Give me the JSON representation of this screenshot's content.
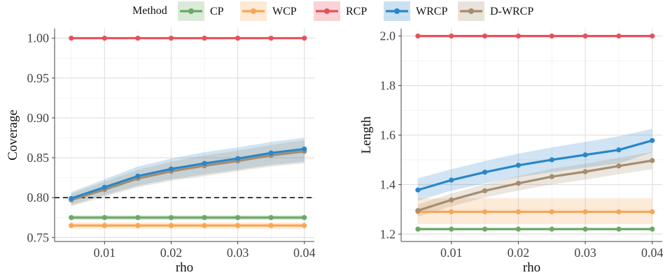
{
  "legend": {
    "title": "Method",
    "placement": "top",
    "items": [
      {
        "label": "CP",
        "color": "#6aaa64"
      },
      {
        "label": "WCP",
        "color": "#f7a654"
      },
      {
        "label": "RCP",
        "color": "#e8505b"
      },
      {
        "label": "WRCP",
        "color": "#2a86c8"
      },
      {
        "label": "D-WRCP",
        "color": "#a68d6e"
      }
    ]
  },
  "chart_data": [
    {
      "type": "line",
      "xlabel": "rho",
      "ylabel": "Coverage",
      "xlim": [
        0.0025,
        0.0415
      ],
      "ylim": [
        0.745,
        1.012
      ],
      "xticks": [
        0.01,
        0.02,
        0.03,
        0.04
      ],
      "xtick_labels": [
        "0.01",
        "0.02",
        "0.03",
        "0.04"
      ],
      "yticks": [
        0.75,
        0.8,
        0.85,
        0.9,
        0.95,
        1.0
      ],
      "ytick_labels": [
        "0.75",
        "0.80",
        "0.85",
        "0.90",
        "0.95",
        "1.00"
      ],
      "grid": true,
      "reference_line": {
        "y": 0.8,
        "style": "dashed",
        "color": "#111111"
      },
      "x": [
        0.005,
        0.01,
        0.015,
        0.02,
        0.025,
        0.03,
        0.035,
        0.04
      ],
      "series": [
        {
          "name": "CP",
          "values": [
            0.775,
            0.775,
            0.775,
            0.775,
            0.775,
            0.775,
            0.775,
            0.775
          ],
          "band": [
            0.772,
            0.778
          ]
        },
        {
          "name": "WCP",
          "values": [
            0.765,
            0.765,
            0.765,
            0.765,
            0.765,
            0.765,
            0.765,
            0.765
          ],
          "band": [
            0.761,
            0.769
          ]
        },
        {
          "name": "RCP",
          "values": [
            1.0,
            1.0,
            1.0,
            1.0,
            1.0,
            1.0,
            1.0,
            1.0
          ],
          "band": [
            0.999,
            1.001
          ]
        },
        {
          "name": "WRCP",
          "values": [
            0.799,
            0.813,
            0.827,
            0.836,
            0.843,
            0.849,
            0.856,
            0.861
          ],
          "lower": [
            0.791,
            0.803,
            0.815,
            0.823,
            0.829,
            0.835,
            0.841,
            0.845
          ],
          "upper": [
            0.807,
            0.823,
            0.839,
            0.849,
            0.857,
            0.863,
            0.87,
            0.875
          ]
        },
        {
          "name": "D-WRCP",
          "values": [
            0.797,
            0.81,
            0.824,
            0.833,
            0.84,
            0.846,
            0.853,
            0.858
          ],
          "lower": [
            0.789,
            0.801,
            0.813,
            0.821,
            0.827,
            0.833,
            0.839,
            0.843
          ],
          "upper": [
            0.805,
            0.82,
            0.835,
            0.845,
            0.853,
            0.859,
            0.866,
            0.872
          ]
        }
      ]
    },
    {
      "type": "line",
      "xlabel": "rho",
      "ylabel": "Length",
      "xlim": [
        0.0025,
        0.0415
      ],
      "ylim": [
        1.17,
        2.03
      ],
      "xticks": [
        0.01,
        0.02,
        0.03,
        0.04
      ],
      "xtick_labels": [
        "0.01",
        "0.02",
        "0.03",
        "0.04"
      ],
      "yticks": [
        1.2,
        1.4,
        1.6,
        1.8,
        2.0
      ],
      "ytick_labels": [
        "1.2",
        "1.4",
        "1.6",
        "1.8",
        "2.0"
      ],
      "grid": true,
      "x": [
        0.005,
        0.01,
        0.015,
        0.02,
        0.025,
        0.03,
        0.035,
        0.04
      ],
      "series": [
        {
          "name": "CP",
          "values": [
            1.22,
            1.22,
            1.22,
            1.22,
            1.22,
            1.22,
            1.22,
            1.22
          ],
          "band": [
            1.215,
            1.225
          ]
        },
        {
          "name": "WCP",
          "values": [
            1.29,
            1.29,
            1.29,
            1.29,
            1.29,
            1.29,
            1.29,
            1.29
          ],
          "band": [
            1.24,
            1.345
          ]
        },
        {
          "name": "RCP",
          "values": [
            2.0,
            2.0,
            2.0,
            2.0,
            2.0,
            2.0,
            2.0,
            2.0
          ],
          "band": [
            1.998,
            2.002
          ]
        },
        {
          "name": "WRCP",
          "values": [
            1.378,
            1.418,
            1.45,
            1.478,
            1.5,
            1.52,
            1.54,
            1.578
          ],
          "lower": [
            1.335,
            1.375,
            1.405,
            1.43,
            1.45,
            1.468,
            1.485,
            1.53
          ],
          "upper": [
            1.425,
            1.462,
            1.495,
            1.525,
            1.55,
            1.572,
            1.595,
            1.625
          ]
        },
        {
          "name": "D-WRCP",
          "values": [
            1.295,
            1.338,
            1.375,
            1.405,
            1.432,
            1.452,
            1.475,
            1.497
          ],
          "lower": [
            1.27,
            1.312,
            1.348,
            1.376,
            1.4,
            1.42,
            1.442,
            1.462
          ],
          "upper": [
            1.32,
            1.364,
            1.402,
            1.434,
            1.464,
            1.484,
            1.508,
            1.532
          ]
        }
      ]
    }
  ]
}
